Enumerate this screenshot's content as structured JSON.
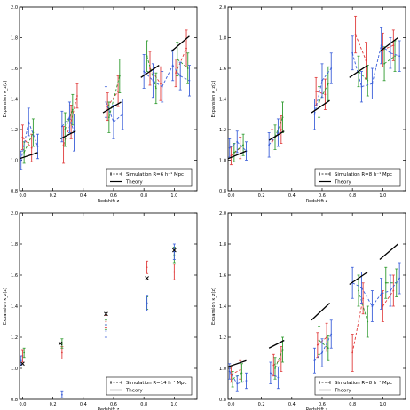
{
  "chart_data": [
    {
      "type": "scatter",
      "panel": "top-left",
      "xlabel": "Redshift z",
      "ylabel": "Expansion κ_z(z)",
      "xlim": [
        -0.02,
        1.15
      ],
      "ylim": [
        0.8,
        2.0
      ],
      "xticks": [
        "0.0",
        "0.2",
        "0.4",
        "0.6",
        "0.8",
        "1.0"
      ],
      "yticks": [
        "0.8",
        "1.0",
        "1.2",
        "1.4",
        "1.6",
        "1.8",
        "2.0"
      ],
      "legend": {
        "position": "lower-right",
        "entries": [
          "Simulation  R=6 h⁻¹ Mpc",
          "Theory"
        ]
      },
      "theory_segments": [
        {
          "x": [
            -0.02,
            0.1
          ],
          "y": [
            1.01,
            1.05
          ]
        },
        {
          "x": [
            0.25,
            0.35
          ],
          "y": [
            1.14,
            1.19
          ]
        },
        {
          "x": [
            0.53,
            0.65
          ],
          "y": [
            1.31,
            1.38
          ]
        },
        {
          "x": [
            0.78,
            0.9
          ],
          "y": [
            1.54,
            1.62
          ]
        },
        {
          "x": [
            0.98,
            1.1
          ],
          "y": [
            1.71,
            1.81
          ]
        }
      ],
      "series": [
        {
          "color": "#e03b3b",
          "points": [
            {
              "x": 0.0,
              "y": 1.15,
              "err": 0.08
            },
            {
              "x": 0.06,
              "y": 1.08,
              "err": 0.09
            },
            {
              "x": 0.27,
              "y": 1.1,
              "err": 0.12
            },
            {
              "x": 0.32,
              "y": 1.25,
              "err": 0.11
            },
            {
              "x": 0.36,
              "y": 1.42,
              "err": 0.08
            },
            {
              "x": 0.56,
              "y": 1.35,
              "err": 0.09
            },
            {
              "x": 0.63,
              "y": 1.45,
              "err": 0.1
            },
            {
              "x": 0.84,
              "y": 1.6,
              "err": 0.11
            },
            {
              "x": 0.91,
              "y": 1.5,
              "err": 0.11
            },
            {
              "x": 1.01,
              "y": 1.57,
              "err": 0.09
            },
            {
              "x": 1.08,
              "y": 1.73,
              "err": 0.12
            }
          ]
        },
        {
          "color": "#2e9a2e",
          "points": [
            {
              "x": 0.01,
              "y": 1.05,
              "err": 0.07
            },
            {
              "x": 0.07,
              "y": 1.18,
              "err": 0.09
            },
            {
              "x": 0.28,
              "y": 1.2,
              "err": 0.11
            },
            {
              "x": 0.33,
              "y": 1.33,
              "err": 0.1
            },
            {
              "x": 0.57,
              "y": 1.28,
              "err": 0.1
            },
            {
              "x": 0.64,
              "y": 1.55,
              "err": 0.11
            },
            {
              "x": 0.82,
              "y": 1.68,
              "err": 0.1
            },
            {
              "x": 0.88,
              "y": 1.47,
              "err": 0.1
            },
            {
              "x": 1.02,
              "y": 1.66,
              "err": 0.11
            },
            {
              "x": 1.09,
              "y": 1.6,
              "err": 0.1
            }
          ]
        },
        {
          "color": "#3b5fd9",
          "points": [
            {
              "x": -0.01,
              "y": 1.0,
              "err": 0.06
            },
            {
              "x": 0.04,
              "y": 1.25,
              "err": 0.09
            },
            {
              "x": 0.1,
              "y": 1.09,
              "err": 0.08
            },
            {
              "x": 0.26,
              "y": 1.22,
              "err": 0.1
            },
            {
              "x": 0.31,
              "y": 1.28,
              "err": 0.1
            },
            {
              "x": 0.34,
              "y": 1.18,
              "err": 0.12
            },
            {
              "x": 0.55,
              "y": 1.38,
              "err": 0.1
            },
            {
              "x": 0.6,
              "y": 1.25,
              "err": 0.11
            },
            {
              "x": 0.66,
              "y": 1.3,
              "err": 0.1
            },
            {
              "x": 0.8,
              "y": 1.58,
              "err": 0.11
            },
            {
              "x": 0.86,
              "y": 1.52,
              "err": 0.11
            },
            {
              "x": 0.92,
              "y": 1.48,
              "err": 0.1
            },
            {
              "x": 0.99,
              "y": 1.62,
              "err": 0.1
            },
            {
              "x": 1.04,
              "y": 1.55,
              "err": 0.09
            },
            {
              "x": 1.1,
              "y": 1.52,
              "err": 0.1
            }
          ]
        }
      ]
    },
    {
      "type": "scatter",
      "panel": "top-right",
      "xlabel": "Redshift z",
      "ylabel": "Expansion κ_z(z)",
      "xlim": [
        -0.02,
        1.15
      ],
      "ylim": [
        0.8,
        2.0
      ],
      "xticks": [
        "0.0",
        "0.2",
        "0.4",
        "0.6",
        "0.8",
        "1.0"
      ],
      "yticks": [
        "0.8",
        "1.0",
        "1.2",
        "1.4",
        "1.6",
        "1.8",
        "2.0"
      ],
      "legend": {
        "position": "lower-right",
        "entries": [
          "Simulation  R=8 h⁻¹ Mpc",
          "Theory"
        ]
      },
      "theory_segments": [
        {
          "x": [
            -0.02,
            0.1
          ],
          "y": [
            1.01,
            1.06
          ]
        },
        {
          "x": [
            0.25,
            0.35
          ],
          "y": [
            1.13,
            1.19
          ]
        },
        {
          "x": [
            0.53,
            0.65
          ],
          "y": [
            1.31,
            1.39
          ]
        },
        {
          "x": [
            0.78,
            0.9
          ],
          "y": [
            1.54,
            1.62
          ]
        },
        {
          "x": [
            0.98,
            1.1
          ],
          "y": [
            1.71,
            1.8
          ]
        }
      ],
      "series": [
        {
          "color": "#e03b3b",
          "points": [
            {
              "x": 0.0,
              "y": 1.03,
              "err": 0.06
            },
            {
              "x": 0.06,
              "y": 1.08,
              "err": 0.07
            },
            {
              "x": 0.27,
              "y": 1.12,
              "err": 0.08
            },
            {
              "x": 0.33,
              "y": 1.2,
              "err": 0.09
            },
            {
              "x": 0.56,
              "y": 1.45,
              "err": 0.09
            },
            {
              "x": 0.62,
              "y": 1.43,
              "err": 0.1
            },
            {
              "x": 0.82,
              "y": 1.82,
              "err": 0.12
            },
            {
              "x": 0.89,
              "y": 1.65,
              "err": 0.12
            },
            {
              "x": 1.0,
              "y": 1.72,
              "err": 0.11
            },
            {
              "x": 1.07,
              "y": 1.75,
              "err": 0.1
            }
          ]
        },
        {
          "color": "#2e9a2e",
          "points": [
            {
              "x": 0.02,
              "y": 1.05,
              "err": 0.06
            },
            {
              "x": 0.08,
              "y": 1.1,
              "err": 0.07
            },
            {
              "x": 0.29,
              "y": 1.15,
              "err": 0.08
            },
            {
              "x": 0.34,
              "y": 1.28,
              "err": 0.1
            },
            {
              "x": 0.58,
              "y": 1.38,
              "err": 0.1
            },
            {
              "x": 0.64,
              "y": 1.5,
              "err": 0.11
            },
            {
              "x": 0.84,
              "y": 1.58,
              "err": 0.1
            },
            {
              "x": 0.9,
              "y": 1.52,
              "err": 0.1
            },
            {
              "x": 1.01,
              "y": 1.63,
              "err": 0.11
            },
            {
              "x": 1.08,
              "y": 1.68,
              "err": 0.1
            }
          ]
        },
        {
          "color": "#3b5fd9",
          "points": [
            {
              "x": -0.01,
              "y": 1.08,
              "err": 0.06
            },
            {
              "x": 0.04,
              "y": 1.12,
              "err": 0.07
            },
            {
              "x": 0.1,
              "y": 1.06,
              "err": 0.06
            },
            {
              "x": 0.25,
              "y": 1.1,
              "err": 0.08
            },
            {
              "x": 0.31,
              "y": 1.18,
              "err": 0.09
            },
            {
              "x": 0.55,
              "y": 1.3,
              "err": 0.1
            },
            {
              "x": 0.6,
              "y": 1.52,
              "err": 0.11
            },
            {
              "x": 0.66,
              "y": 1.6,
              "err": 0.1
            },
            {
              "x": 0.8,
              "y": 1.7,
              "err": 0.11
            },
            {
              "x": 0.86,
              "y": 1.48,
              "err": 0.1
            },
            {
              "x": 0.93,
              "y": 1.5,
              "err": 0.1
            },
            {
              "x": 0.99,
              "y": 1.75,
              "err": 0.12
            },
            {
              "x": 1.05,
              "y": 1.7,
              "err": 0.1
            },
            {
              "x": 1.11,
              "y": 1.68,
              "err": 0.1
            }
          ]
        }
      ]
    },
    {
      "type": "scatter",
      "panel": "bottom-left",
      "xlabel": "Redshift z",
      "ylabel": "Expansion κ_z(z)",
      "xlim": [
        -0.02,
        1.15
      ],
      "ylim": [
        0.8,
        2.0
      ],
      "xticks": [
        "0.0",
        "0.2",
        "0.4",
        "0.6",
        "0.8",
        "1.0"
      ],
      "yticks": [
        "0.8",
        "1.0",
        "1.2",
        "1.4",
        "1.6",
        "1.8",
        "2.0"
      ],
      "legend": {
        "position": "lower-right",
        "entries": [
          "Simulation  R=14 h⁻¹ Mpc",
          "Theory"
        ]
      },
      "theory_segments": [],
      "markers": [
        {
          "x": 0.0,
          "y": 1.03
        },
        {
          "x": 0.25,
          "y": 1.16
        },
        {
          "x": 0.55,
          "y": 1.35
        },
        {
          "x": 0.82,
          "y": 1.58
        },
        {
          "x": 1.0,
          "y": 1.76
        }
      ],
      "series": [
        {
          "color": "#e03b3b",
          "points": [
            {
              "x": 0.0,
              "y": 1.08,
              "err": 0.04
            },
            {
              "x": 0.26,
              "y": 1.1,
              "err": 0.04
            },
            {
              "x": 0.55,
              "y": 1.3,
              "err": 0.04
            },
            {
              "x": 0.82,
              "y": 1.65,
              "err": 0.04
            },
            {
              "x": 1.0,
              "y": 1.62,
              "err": 0.05
            }
          ]
        },
        {
          "color": "#2e9a2e",
          "points": [
            {
              "x": 0.01,
              "y": 1.1,
              "err": 0.03
            },
            {
              "x": 0.26,
              "y": 1.16,
              "err": 0.03
            },
            {
              "x": 0.55,
              "y": 1.28,
              "err": 0.03
            },
            {
              "x": 0.82,
              "y": 1.42,
              "err": 0.04
            },
            {
              "x": 1.0,
              "y": 1.73,
              "err": 0.05
            }
          ]
        },
        {
          "color": "#3b5fd9",
          "points": [
            {
              "x": -0.01,
              "y": 1.05,
              "err": 0.03
            },
            {
              "x": 0.26,
              "y": 0.83,
              "err": 0.02
            },
            {
              "x": 0.55,
              "y": 1.24,
              "err": 0.04
            },
            {
              "x": 0.82,
              "y": 1.42,
              "err": 0.05
            },
            {
              "x": 1.0,
              "y": 1.75,
              "err": 0.05
            }
          ]
        }
      ]
    },
    {
      "type": "scatter",
      "panel": "bottom-right",
      "xlabel": "Redshift z",
      "ylabel": "Expansion κ_z(z)",
      "xlim": [
        -0.02,
        1.15
      ],
      "ylim": [
        0.8,
        2.0
      ],
      "xticks": [
        "0.0",
        "0.2",
        "0.4",
        "0.6",
        "0.8",
        "1.0"
      ],
      "yticks": [
        "0.8",
        "1.0",
        "1.2",
        "1.4",
        "1.6",
        "1.8",
        "2.0"
      ],
      "legend": {
        "position": "lower-right",
        "entries": [
          "Simulation  R=8 h⁻¹ Mpc",
          "Theory"
        ]
      },
      "theory_segments": [
        {
          "x": [
            -0.02,
            0.1
          ],
          "y": [
            1.01,
            1.05
          ]
        },
        {
          "x": [
            0.25,
            0.35
          ],
          "y": [
            1.13,
            1.18
          ]
        },
        {
          "x": [
            0.53,
            0.65
          ],
          "y": [
            1.31,
            1.42
          ]
        },
        {
          "x": [
            0.78,
            0.9
          ],
          "y": [
            1.54,
            1.62
          ]
        },
        {
          "x": [
            0.98,
            1.1
          ],
          "y": [
            1.7,
            1.8
          ]
        }
      ],
      "series": [
        {
          "color": "#e03b3b",
          "points": [
            {
              "x": 0.0,
              "y": 0.96,
              "err": 0.05
            },
            {
              "x": 0.06,
              "y": 0.99,
              "err": 0.06
            },
            {
              "x": 0.28,
              "y": 1.02,
              "err": 0.07
            },
            {
              "x": 0.33,
              "y": 1.06,
              "err": 0.08
            },
            {
              "x": 0.57,
              "y": 1.15,
              "err": 0.08
            },
            {
              "x": 0.63,
              "y": 1.2,
              "err": 0.09
            },
            {
              "x": 0.8,
              "y": 1.1,
              "err": 0.12
            },
            {
              "x": 0.87,
              "y": 1.45,
              "err": 0.1
            },
            {
              "x": 1.0,
              "y": 1.4,
              "err": 0.1
            },
            {
              "x": 1.07,
              "y": 1.5,
              "err": 0.1
            }
          ]
        },
        {
          "color": "#2e9a2e",
          "points": [
            {
              "x": 0.01,
              "y": 0.93,
              "err": 0.05
            },
            {
              "x": 0.07,
              "y": 0.97,
              "err": 0.06
            },
            {
              "x": 0.29,
              "y": 1.0,
              "err": 0.07
            },
            {
              "x": 0.34,
              "y": 1.12,
              "err": 0.08
            },
            {
              "x": 0.58,
              "y": 1.18,
              "err": 0.09
            },
            {
              "x": 0.64,
              "y": 1.13,
              "err": 0.08
            },
            {
              "x": 0.84,
              "y": 1.5,
              "err": 0.1
            },
            {
              "x": 0.9,
              "y": 1.3,
              "err": 0.1
            },
            {
              "x": 1.02,
              "y": 1.55,
              "err": 0.1
            },
            {
              "x": 1.09,
              "y": 1.55,
              "err": 0.09
            }
          ]
        },
        {
          "color": "#3b5fd9",
          "points": [
            {
              "x": -0.01,
              "y": 0.98,
              "err": 0.05
            },
            {
              "x": 0.04,
              "y": 0.9,
              "err": 0.05
            },
            {
              "x": 0.1,
              "y": 0.92,
              "err": 0.05
            },
            {
              "x": 0.26,
              "y": 0.97,
              "err": 0.07
            },
            {
              "x": 0.31,
              "y": 0.94,
              "err": 0.07
            },
            {
              "x": 0.55,
              "y": 1.05,
              "err": 0.08
            },
            {
              "x": 0.6,
              "y": 1.1,
              "err": 0.09
            },
            {
              "x": 0.66,
              "y": 1.22,
              "err": 0.09
            },
            {
              "x": 0.8,
              "y": 1.55,
              "err": 0.1
            },
            {
              "x": 0.86,
              "y": 1.52,
              "err": 0.1
            },
            {
              "x": 0.93,
              "y": 1.4,
              "err": 0.1
            },
            {
              "x": 0.99,
              "y": 1.48,
              "err": 0.1
            },
            {
              "x": 1.05,
              "y": 1.5,
              "err": 0.1
            },
            {
              "x": 1.11,
              "y": 1.58,
              "err": 0.1
            }
          ]
        }
      ]
    }
  ]
}
